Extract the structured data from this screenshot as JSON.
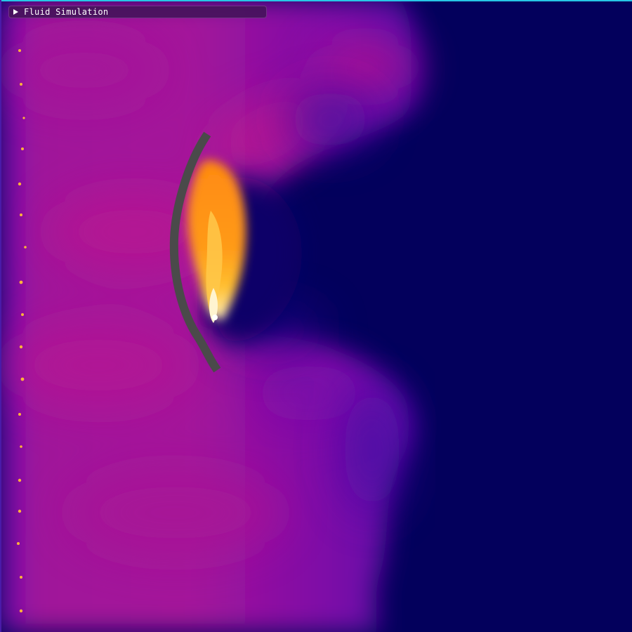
{
  "window": {
    "panel_title": "Fluid Simulation",
    "panel_state": "collapsed"
  },
  "icons": {
    "collapse": "triangle-right-icon"
  },
  "colors": {
    "background_deep": "#03005c",
    "dye_magenta": "#b0188c",
    "dye_violet": "#7a0aa6",
    "flame_orange": "#ff7a10",
    "flame_yellow": "#ffd040",
    "obstacle_gray": "#4a4a4a",
    "panel_bg": "#46145c",
    "top_edge": "#27c7e6"
  }
}
